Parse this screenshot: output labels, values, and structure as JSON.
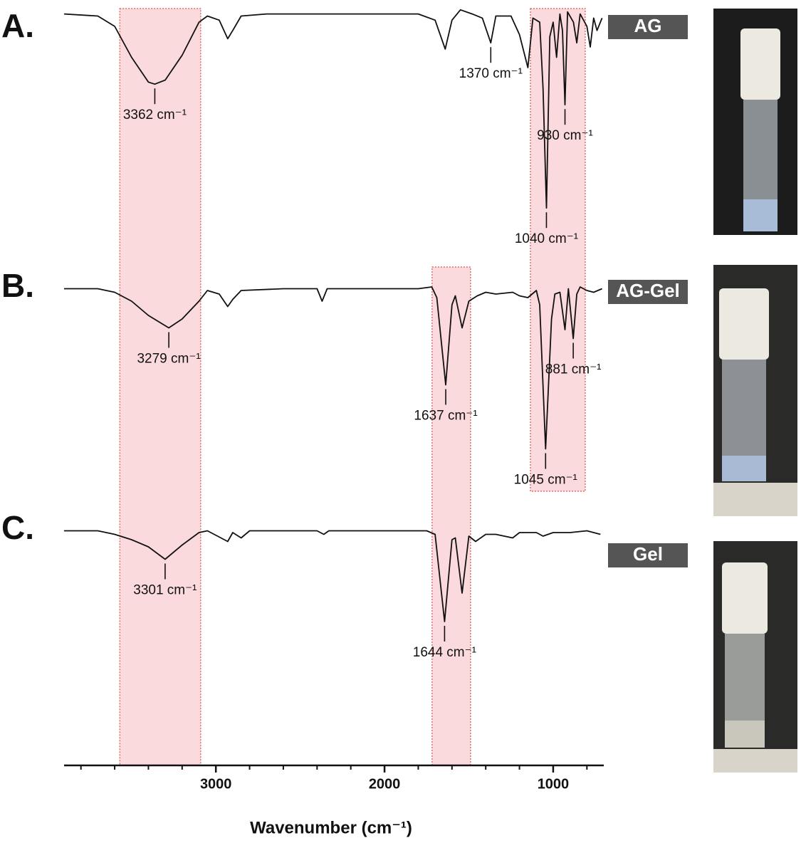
{
  "chart_data": {
    "type": "line",
    "xlabel": "Wavenumber (cm⁻¹)",
    "xlim": [
      3900,
      700
    ],
    "xticks": [
      3000,
      2000,
      1000
    ],
    "xticks_minor": [
      3800,
      3600,
      3400,
      3200,
      2800,
      2600,
      2400,
      2200,
      1800,
      1600,
      1400,
      1200,
      800
    ],
    "ylim": [
      0,
      100
    ],
    "panel_labels": [
      "A.",
      "B.",
      "C."
    ],
    "bands": [
      {
        "xlim": [
          3570,
          3090
        ],
        "color": "#fbdadd"
      },
      {
        "xlim": [
          1718,
          1490
        ],
        "color": "#fbdadd"
      },
      {
        "xlim": [
          1135,
          810
        ],
        "color": "#fbdadd"
      }
    ],
    "series": [
      {
        "name": "AG",
        "color": "#111111",
        "x": [
          3900,
          3700,
          3600,
          3500,
          3400,
          3362,
          3300,
          3200,
          3100,
          3050,
          2980,
          2930,
          2900,
          2850,
          2700,
          2400,
          2200,
          2000,
          1800,
          1700,
          1640,
          1600,
          1550,
          1480,
          1420,
          1370,
          1340,
          1250,
          1200,
          1150,
          1120,
          1080,
          1060,
          1040,
          1020,
          1000,
          980,
          960,
          945,
          930,
          915,
          880,
          860,
          840,
          800,
          780,
          760,
          740,
          710
        ],
        "values": [
          96,
          95,
          90,
          75,
          63,
          62,
          64,
          76,
          92,
          95,
          93,
          84,
          88,
          95,
          96,
          96,
          96,
          96,
          96,
          93,
          79,
          93,
          98,
          96,
          94,
          82,
          95,
          95,
          86,
          70,
          94,
          92,
          60,
          2,
          85,
          92,
          75,
          96,
          88,
          52,
          97,
          92,
          82,
          96,
          90,
          80,
          94,
          88,
          94
        ],
        "annotations": [
          {
            "x": 3362,
            "label": "3362 cm⁻¹"
          },
          {
            "x": 1370,
            "label": "1370 cm⁻¹"
          },
          {
            "x": 930,
            "label": "930 cm⁻¹"
          },
          {
            "x": 1040,
            "label": "1040 cm⁻¹"
          }
        ]
      },
      {
        "name": "AG-Gel",
        "color": "#111111",
        "x": [
          3900,
          3700,
          3600,
          3500,
          3400,
          3279,
          3200,
          3100,
          3050,
          2980,
          2930,
          2900,
          2850,
          2600,
          2400,
          2370,
          2340,
          2000,
          1800,
          1720,
          1690,
          1637,
          1600,
          1580,
          1540,
          1500,
          1450,
          1400,
          1340,
          1240,
          1200,
          1150,
          1100,
          1080,
          1045,
          1010,
          990,
          960,
          930,
          910,
          881,
          860,
          840,
          800,
          760,
          710
        ],
        "values": [
          95,
          95,
          93,
          88,
          80,
          73,
          78,
          88,
          94,
          92,
          85,
          89,
          94,
          95,
          95,
          88,
          95,
          95,
          95,
          96,
          90,
          41,
          86,
          91,
          73,
          88,
          91,
          93,
          92,
          93,
          91,
          90,
          94,
          86,
          5,
          78,
          92,
          93,
          72,
          95,
          67,
          92,
          96,
          94,
          93,
          95
        ],
        "annotations": [
          {
            "x": 3279,
            "label": "3279 cm⁻¹"
          },
          {
            "x": 1637,
            "label": "1637 cm⁻¹"
          },
          {
            "x": 1045,
            "label": "1045 cm⁻¹"
          },
          {
            "x": 881,
            "label": "881 cm⁻¹"
          }
        ]
      },
      {
        "name": "Gel",
        "color": "#111111",
        "x": [
          3900,
          3700,
          3600,
          3500,
          3400,
          3301,
          3200,
          3100,
          3050,
          2930,
          2900,
          2850,
          2800,
          2400,
          2360,
          2330,
          2000,
          1750,
          1700,
          1644,
          1600,
          1580,
          1540,
          1500,
          1460,
          1400,
          1340,
          1240,
          1200,
          1100,
          1060,
          1000,
          900,
          800,
          720
        ],
        "values": [
          95,
          95,
          93,
          90,
          86,
          79,
          87,
          94,
          95,
          89,
          94,
          91,
          95,
          95,
          93,
          95,
          95,
          95,
          93,
          44,
          90,
          91,
          60,
          92,
          89,
          93,
          93,
          91,
          94,
          94,
          92,
          94,
          94,
          95,
          93
        ],
        "annotations": [
          {
            "x": 3301,
            "label": "3301 cm⁻¹"
          },
          {
            "x": 1644,
            "label": "1644 cm⁻¹"
          }
        ]
      }
    ]
  }
}
